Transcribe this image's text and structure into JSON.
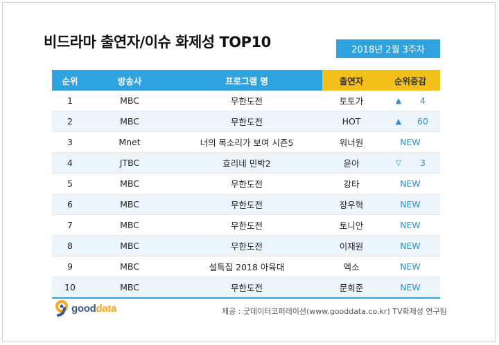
{
  "title": "비드라마 출연자/이슈 화제성 TOP10",
  "week_label": "2018년  2월 3주차",
  "headers": {
    "rank": "순위",
    "channel": "방송사",
    "program": "프로그램 명",
    "cast": "출연자",
    "change": "순위증감"
  },
  "rows": [
    {
      "rank": "1",
      "channel": "MBC",
      "program": "무한도전",
      "cast": "토토가",
      "arrow": "▲",
      "change": "4"
    },
    {
      "rank": "2",
      "channel": "MBC",
      "program": "무한도전",
      "cast": "HOT",
      "arrow": "▲",
      "change": "60"
    },
    {
      "rank": "3",
      "channel": "Mnet",
      "program": "너의 목소리가 보여 시즌5",
      "cast": "워너원",
      "arrow": "",
      "change": "NEW"
    },
    {
      "rank": "4",
      "channel": "JTBC",
      "program": "효리네 민박2",
      "cast": "윤아",
      "arrow": "▽",
      "change": "3"
    },
    {
      "rank": "5",
      "channel": "MBC",
      "program": "무한도전",
      "cast": "강타",
      "arrow": "",
      "change": "NEW"
    },
    {
      "rank": "6",
      "channel": "MBC",
      "program": "무한도전",
      "cast": "장우혁",
      "arrow": "",
      "change": "NEW"
    },
    {
      "rank": "7",
      "channel": "MBC",
      "program": "무한도전",
      "cast": "토니안",
      "arrow": "",
      "change": "NEW"
    },
    {
      "rank": "8",
      "channel": "MBC",
      "program": "무한도전",
      "cast": "이재원",
      "arrow": "",
      "change": "NEW"
    },
    {
      "rank": "9",
      "channel": "MBC",
      "program": "설특집 2018 아육대",
      "cast": "엑소",
      "arrow": "",
      "change": "NEW"
    },
    {
      "rank": "10",
      "channel": "MBC",
      "program": "무한도전",
      "cast": "문희준",
      "arrow": "",
      "change": "NEW"
    }
  ],
  "logo": {
    "brand_main": "good",
    "brand_accent": "data",
    "icon": "gooddata-logo-icon"
  },
  "source": "제공 : 굿데이터코퍼레이션(www.gooddata.co.kr) TV화제성 연구팀",
  "colors": {
    "header_blue": "#2fa3e0",
    "header_yellow": "#f5bf1a",
    "row_alt": "#edf5fc",
    "accent_text": "#2a8fd6"
  }
}
